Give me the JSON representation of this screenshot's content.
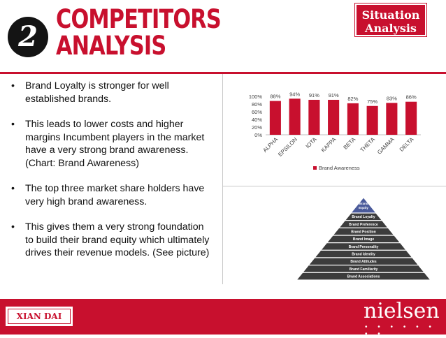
{
  "header": {
    "number": "2",
    "title_line1": "COMPETITORS",
    "title_line2": "ANALYSIS",
    "tag_line1": "Situation",
    "tag_line2": "Analysis"
  },
  "bullets": [
    "Brand Loyalty is stronger for well established brands.",
    "This leads to lower costs and higher margins Incumbent players in the market have a very strong brand awareness. (Chart: Brand Awareness)",
    "The top three market share holders have very high brand awareness.",
    "This gives them a very strong foundation to build their brand equity which ultimately drives their revenue models. (See picture)"
  ],
  "chart_data": {
    "type": "bar",
    "categories": [
      "ALPHA",
      "EPSILON",
      "IOTA",
      "KAPPA",
      "BETA",
      "THETA",
      "GAMMA",
      "DELTA"
    ],
    "series": [
      {
        "name": "Brand Awareness",
        "values": [
          88,
          94,
          91,
          91,
          82,
          75,
          83,
          86
        ]
      }
    ],
    "data_labels": [
      "88%",
      "94%",
      "91%",
      "91%",
      "82%",
      "75%",
      "83%",
      "86%"
    ],
    "y_ticks": [
      "0%",
      "20%",
      "40%",
      "60%",
      "80%",
      "100%"
    ],
    "ylim": [
      0,
      100
    ],
    "legend_position": "bottom",
    "color": "#c8102e",
    "grid": false
  },
  "pyramid": {
    "top_label_line1": "Brand",
    "top_label_line2": "Equity",
    "levels": [
      "Brand Loyalty",
      "Brand Preference",
      "Brand Position",
      "Brand Image",
      "Brand Personality",
      "Brand Identity",
      "Brand Attitudes",
      "Brand Familiarity",
      "Brand Associations"
    ]
  },
  "footer": {
    "left_logo": "XIAN DAI",
    "right_logo": "nielsen",
    "right_dots": "• • • • • • • •"
  },
  "colors": {
    "accent": "#c8102e",
    "pyramid_top": "#4a5a9a",
    "pyramid_levels": "#3c3c3c"
  }
}
